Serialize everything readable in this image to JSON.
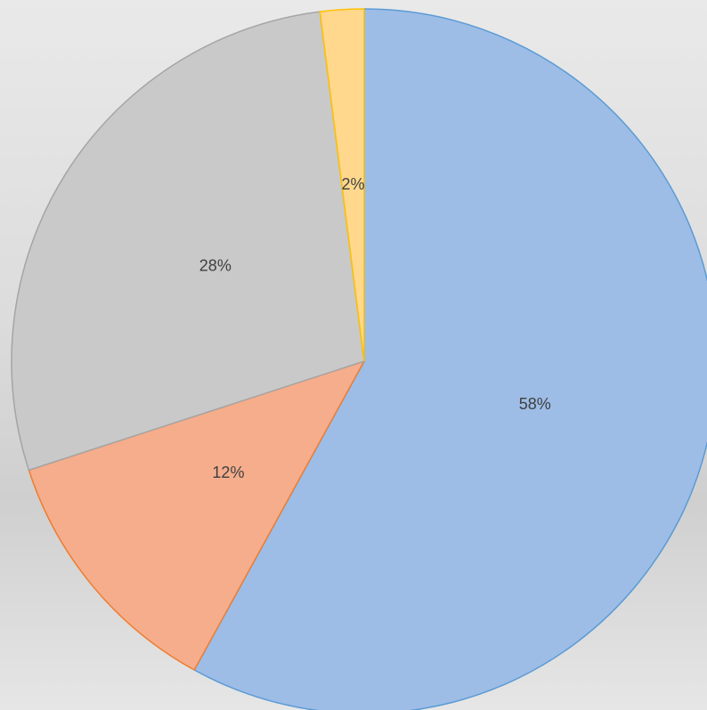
{
  "chart_data": {
    "type": "pie",
    "values": [
      58,
      12,
      28,
      2
    ],
    "value_labels": [
      "58%",
      "12%",
      "28%",
      "2%"
    ],
    "colors": [
      "#9dbde6",
      "#f5ad8c",
      "#c9c9c9",
      "#ffd88e"
    ],
    "edge_colors": [
      "#5b9bd5",
      "#ed7d31",
      "#a5a5a5",
      "#ffc000"
    ]
  }
}
